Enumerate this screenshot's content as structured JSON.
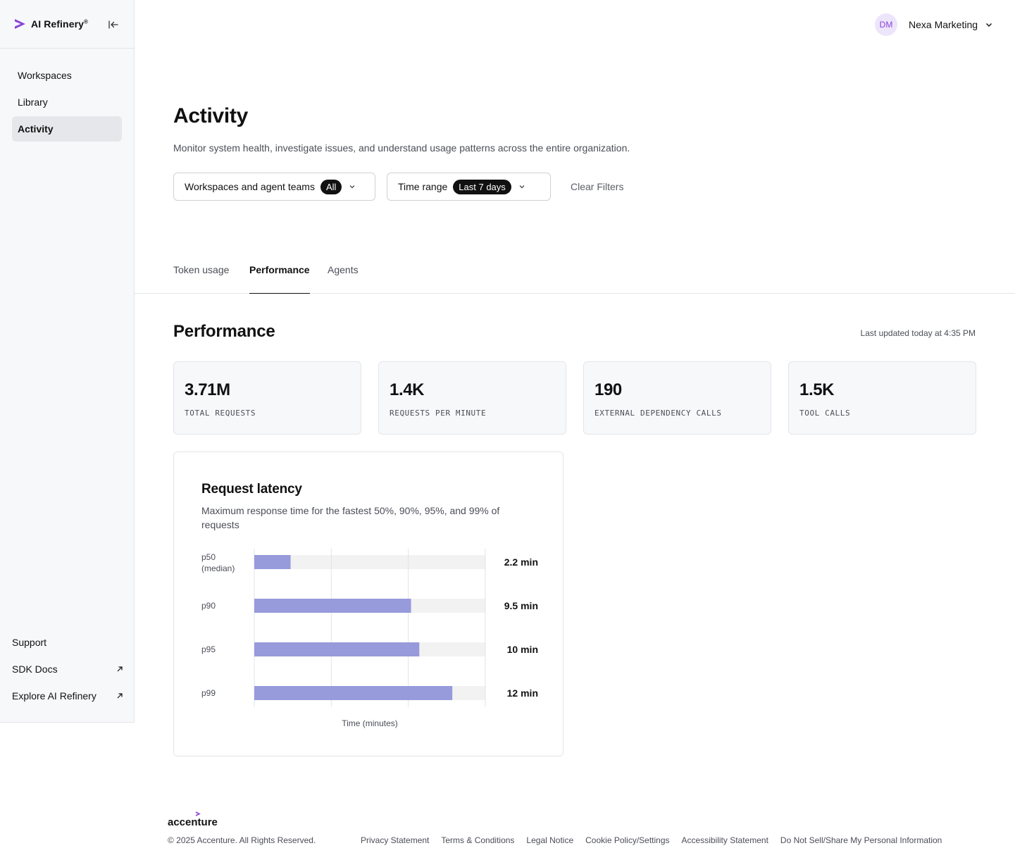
{
  "brand": {
    "name": "AI Refinery",
    "mark": "®",
    "accent": "#8a45d6"
  },
  "sidebar": {
    "items": [
      {
        "label": "Workspaces",
        "active": false
      },
      {
        "label": "Library",
        "active": false
      },
      {
        "label": "Activity",
        "active": true
      }
    ],
    "bottom": [
      {
        "label": "Support",
        "external": false
      },
      {
        "label": "SDK Docs",
        "external": true
      },
      {
        "label": "Explore AI Refinery",
        "external": true
      }
    ]
  },
  "account": {
    "initials": "DM",
    "name": "Nexa Marketing"
  },
  "header": {
    "title": "Activity",
    "description": "Monitor system health, investigate issues, and understand usage patterns across the entire organization."
  },
  "filters": {
    "workspaces": {
      "label": "Workspaces and agent teams",
      "value": "All"
    },
    "time_range": {
      "label": "Time range",
      "value": "Last 7 days"
    },
    "clear": "Clear Filters"
  },
  "tabs": [
    {
      "label": "Token usage",
      "active": false
    },
    {
      "label": "Performance",
      "active": true
    },
    {
      "label": "Agents",
      "active": false
    }
  ],
  "performance": {
    "title": "Performance",
    "updated": "Last updated today at 4:35 PM",
    "stats": [
      {
        "value": "3.71M",
        "label": "TOTAL REQUESTS"
      },
      {
        "value": "1.4K",
        "label": "REQUESTS PER MINUTE"
      },
      {
        "value": "190",
        "label": "EXTERNAL DEPENDENCY CALLS"
      },
      {
        "value": "1.5K",
        "label": "TOOL CALLS"
      }
    ]
  },
  "latency": {
    "title": "Request latency",
    "description": "Maximum response time for the fastest 50%, 90%, 95%, and 99% of requests"
  },
  "chart_data": {
    "type": "bar",
    "orientation": "horizontal",
    "categories": [
      "p50\n(median)",
      "p90",
      "p95",
      "p99"
    ],
    "values": [
      2.2,
      9.5,
      10,
      12
    ],
    "value_labels": [
      "2.2 min",
      "9.5 min",
      "10 min",
      "12 min"
    ],
    "xlabel": "Time (minutes)",
    "xlim": [
      0,
      14
    ],
    "grid": true,
    "bar_color": "#979adb",
    "track_color": "#f2f2f3"
  },
  "footer": {
    "logo": "accenture",
    "copyright": "© 2025 Accenture. All Rights Reserved.",
    "links": [
      "Privacy Statement",
      "Terms & Conditions",
      "Legal Notice",
      "Cookie Policy/Settings",
      "Accessibility Statement",
      "Do Not Sell/Share My Personal Information"
    ]
  }
}
